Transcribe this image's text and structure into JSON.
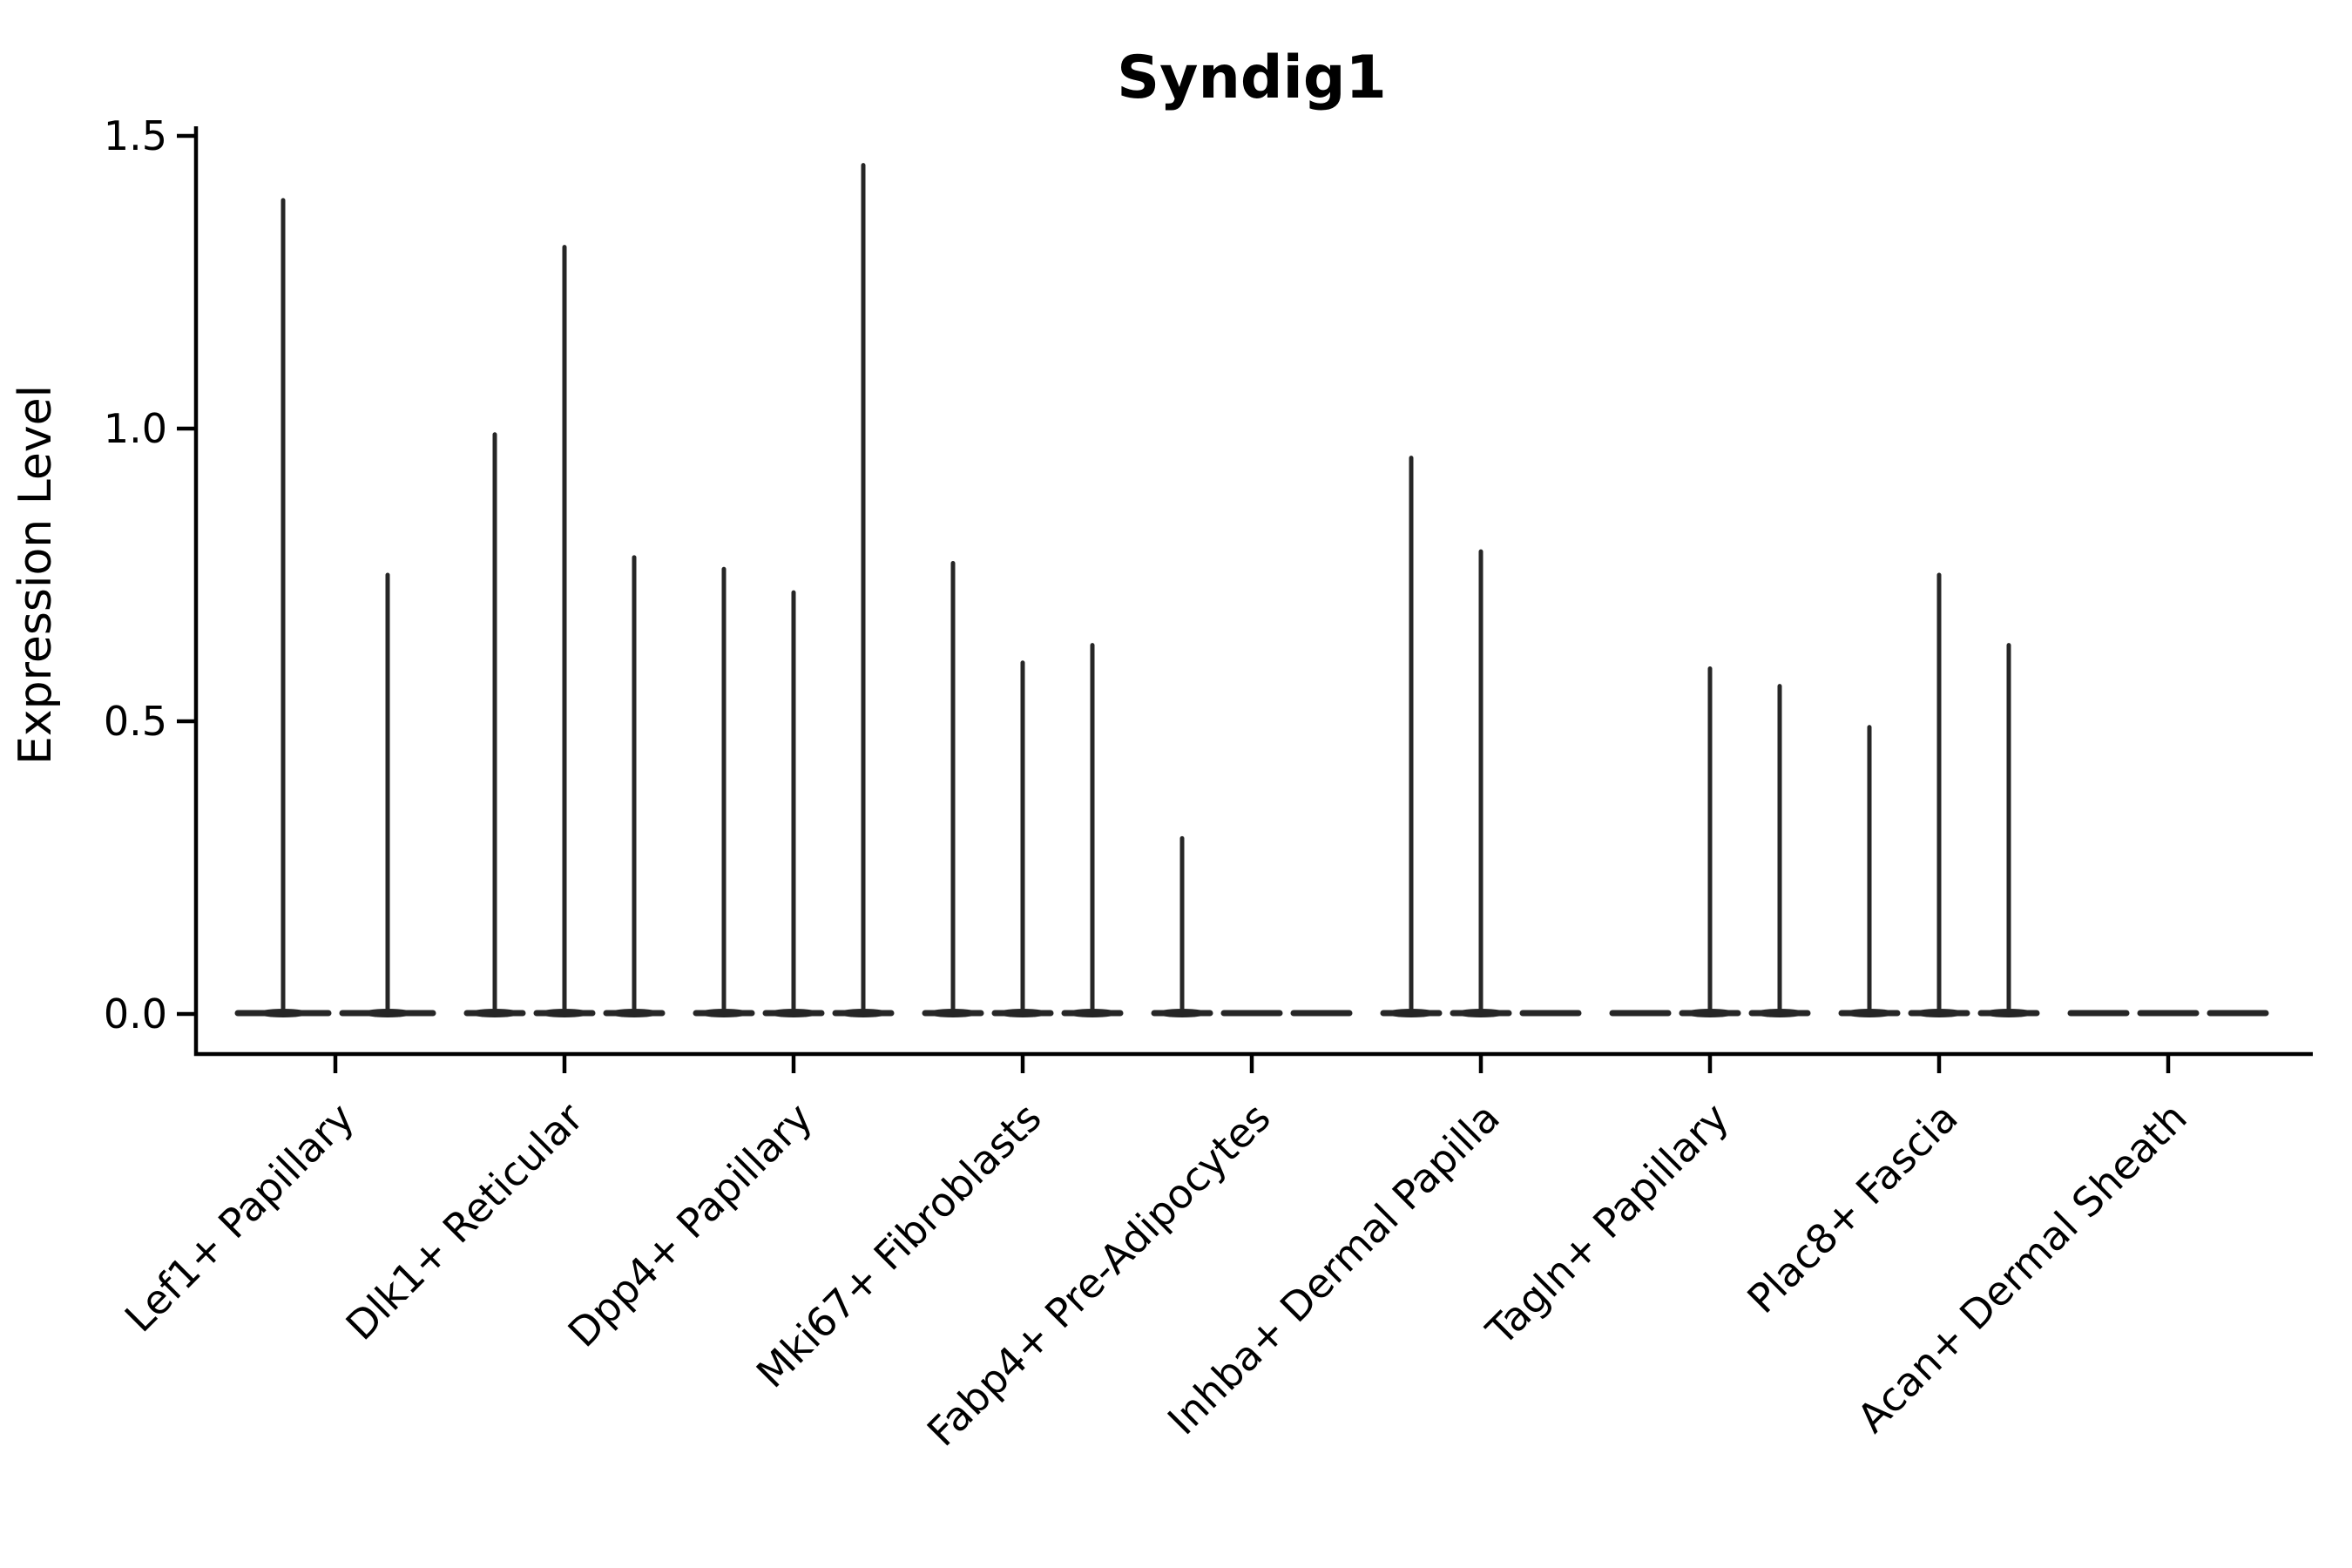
{
  "chart_data": {
    "type": "violin",
    "title": "Syndig1",
    "ylabel": "Expression Level",
    "xlabel": "",
    "yticks": [
      0.0,
      0.5,
      1.0,
      1.5
    ],
    "yticklabels": [
      "0.0",
      "0.5",
      "1.0",
      "1.5"
    ],
    "ylim": [
      -0.07,
      1.52
    ],
    "grid": false,
    "legend": "none",
    "categories": [
      "Lef1+ Papillary",
      "Dlk1+ Reticular",
      "Dpp4+ Papillary",
      "Mki67+ Fibroblasts",
      "Fabp4+ Pre-Adipocytes",
      "Inhba+ Dermal Papilla",
      "Tagln+ Papillary",
      "Plac8+ Fascia",
      "Acan+ Dermal Sheath"
    ],
    "groups": [
      {
        "category": "Lef1+ Papillary",
        "violins": [
          {
            "peak": 1.39
          },
          {
            "peak": 0.75
          }
        ]
      },
      {
        "category": "Dlk1+ Reticular",
        "violins": [
          {
            "peak": 0.99
          },
          {
            "peak": 1.31
          },
          {
            "peak": 0.78
          }
        ]
      },
      {
        "category": "Dpp4+ Papillary",
        "violins": [
          {
            "peak": 0.76
          },
          {
            "peak": 0.72
          },
          {
            "peak": 1.45
          }
        ]
      },
      {
        "category": "Mki67+ Fibroblasts",
        "violins": [
          {
            "peak": 0.77
          },
          {
            "peak": 0.6
          },
          {
            "peak": 0.63
          }
        ]
      },
      {
        "category": "Fabp4+ Pre-Adipocytes",
        "violins": [
          {
            "peak": 0.3
          },
          {
            "peak": 0.0
          },
          {
            "peak": 0.0
          }
        ]
      },
      {
        "category": "Inhba+ Dermal Papilla",
        "violins": [
          {
            "peak": 0.95
          },
          {
            "peak": 0.79
          },
          {
            "peak": 0.0
          }
        ]
      },
      {
        "category": "Tagln+ Papillary",
        "violins": [
          {
            "peak": 0.0
          },
          {
            "peak": 0.59
          },
          {
            "peak": 0.56
          }
        ]
      },
      {
        "category": "Plac8+ Fascia",
        "violins": [
          {
            "peak": 0.49
          },
          {
            "peak": 0.75
          },
          {
            "peak": 0.63
          }
        ]
      },
      {
        "category": "Acan+ Dermal Sheath",
        "violins": [
          {
            "peak": 0.0
          },
          {
            "peak": 0.0
          },
          {
            "peak": 0.0
          }
        ]
      }
    ],
    "colors": {
      "violin": "#262626",
      "axis": "#000000",
      "text": "#000000",
      "background": "#ffffff"
    }
  }
}
